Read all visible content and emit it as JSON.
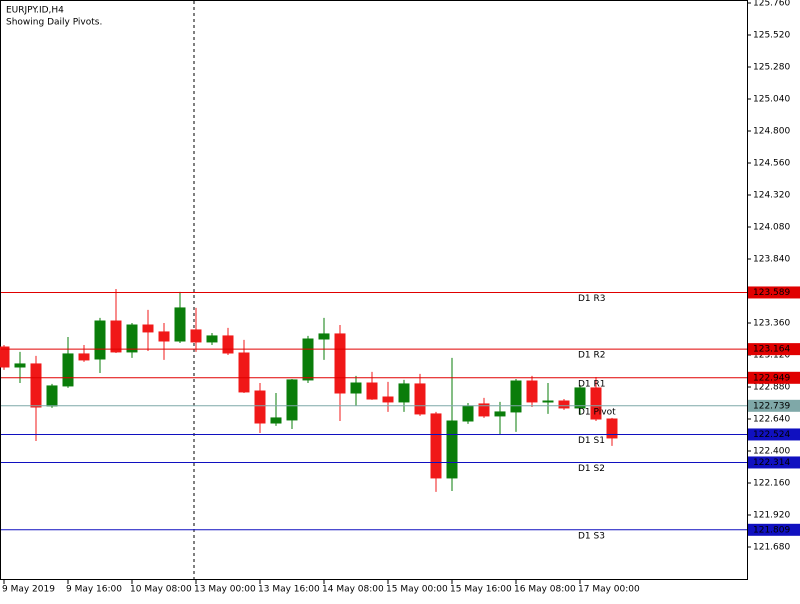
{
  "chart_data": {
    "type": "candlestick",
    "title": "EURJPY.ID,H4",
    "subtitle": "Showing Daily Pivots.",
    "categories": [
      "9 May 2019",
      null,
      null,
      null,
      "9 May 16:00",
      null,
      null,
      null,
      "10 May 08:00",
      null,
      null,
      null,
      "13 May 00:00",
      null,
      null,
      null,
      "13 May 16:00",
      null,
      null,
      null,
      "14 May 08:00",
      null,
      null,
      null,
      "15 May 00:00",
      null,
      null,
      null,
      "15 May 16:00",
      null,
      null,
      null,
      "16 May 08:00",
      null,
      null,
      null,
      "17 May 00:00",
      null,
      null
    ],
    "open": [
      123.18,
      123.03,
      123.053,
      122.738,
      122.888,
      123.128,
      123.09,
      123.375,
      123.143,
      123.345,
      123.293,
      123.225,
      123.308,
      123.218,
      123.263,
      123.135,
      122.85,
      122.61,
      122.633,
      122.933,
      123.24,
      123.278,
      122.835,
      122.91,
      122.805,
      122.768,
      122.903,
      122.678,
      122.198,
      122.625,
      122.753,
      122.663,
      122.693,
      122.925,
      122.768,
      122.775,
      122.723,
      122.873,
      122.64
    ],
    "high": [
      123.195,
      123.143,
      123.113,
      122.903,
      123.255,
      123.195,
      123.398,
      123.615,
      123.36,
      123.458,
      123.36,
      123.593,
      123.473,
      123.285,
      123.323,
      123.233,
      122.91,
      122.835,
      122.94,
      123.263,
      123.398,
      123.345,
      122.963,
      122.993,
      122.918,
      122.933,
      122.978,
      122.693,
      123.098,
      122.76,
      122.798,
      122.768,
      122.94,
      122.963,
      122.91,
      122.79,
      122.895,
      122.955,
      122.648
    ],
    "low": [
      123.008,
      122.91,
      122.475,
      122.723,
      122.873,
      123.068,
      122.985,
      123.135,
      123.098,
      123.15,
      123.083,
      123.21,
      123.143,
      123.195,
      123.12,
      122.835,
      122.535,
      122.588,
      122.565,
      122.91,
      123.083,
      122.625,
      122.738,
      122.783,
      122.693,
      122.693,
      122.663,
      122.093,
      122.1,
      122.603,
      122.648,
      122.52,
      122.543,
      122.73,
      122.678,
      122.708,
      122.67,
      122.625,
      122.438
    ],
    "close": [
      123.03,
      123.053,
      122.73,
      122.888,
      123.128,
      123.083,
      123.375,
      123.143,
      123.345,
      123.293,
      123.225,
      123.473,
      123.218,
      123.263,
      123.135,
      122.843,
      122.61,
      122.648,
      122.933,
      123.24,
      123.278,
      122.835,
      122.91,
      122.79,
      122.768,
      122.903,
      122.678,
      122.198,
      122.625,
      122.738,
      122.663,
      122.693,
      122.925,
      122.768,
      122.775,
      122.723,
      122.873,
      122.64,
      122.498
    ],
    "up_color": "#0a7d0a",
    "down_color": "#f01818",
    "ylim": [
      121.4325,
      125.7825
    ],
    "yticks": [
      {
        "value": 125.76,
        "label": "125.760"
      },
      {
        "value": 125.52,
        "label": "125.520"
      },
      {
        "value": 125.28,
        "label": "125.280"
      },
      {
        "value": 125.04,
        "label": "125.040"
      },
      {
        "value": 124.8,
        "label": "124.800"
      },
      {
        "value": 124.56,
        "label": "124.560"
      },
      {
        "value": 124.32,
        "label": "124.320"
      },
      {
        "value": 124.08,
        "label": "124.080"
      },
      {
        "value": 123.84,
        "label": "123.840"
      },
      {
        "value": 123.6,
        "label": "123.600"
      },
      {
        "value": 123.36,
        "label": "123.360"
      },
      {
        "value": 123.12,
        "label": "123.120"
      },
      {
        "value": 122.88,
        "label": "122.880"
      },
      {
        "value": 122.64,
        "label": "122.640"
      },
      {
        "value": 122.4,
        "label": "122.400"
      },
      {
        "value": 122.16,
        "label": "122.160"
      },
      {
        "value": 121.92,
        "label": "121.920"
      },
      {
        "value": 121.68,
        "label": "121.680"
      }
    ],
    "levels": [
      {
        "name": "D1 R3",
        "value": 123.589,
        "color": "#e00000"
      },
      {
        "name": "D1 R2",
        "value": 123.164,
        "color": "#e00000"
      },
      {
        "name": "D1 R1",
        "value": 122.949,
        "color": "#e00000"
      },
      {
        "name": "D1 Pivot",
        "value": 122.739,
        "color": "#7fa8a8"
      },
      {
        "name": "D1 S1",
        "value": 122.524,
        "color": "#1010c0"
      },
      {
        "name": "D1 S2",
        "value": 122.314,
        "color": "#1010c0"
      },
      {
        "name": "D1 S3",
        "value": 121.809,
        "color": "#1010c0"
      }
    ]
  }
}
